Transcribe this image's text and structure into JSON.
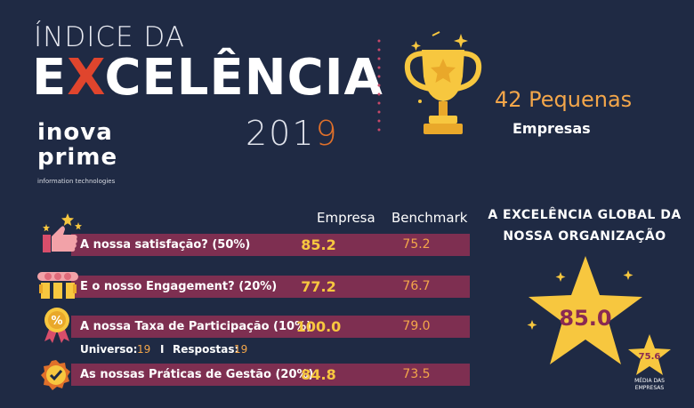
{
  "header": {
    "line1": "ÍNDICE DA",
    "excel_pre": "E",
    "excel_x": "X",
    "excel_post": "CELÊNCIA",
    "year_main": "201",
    "year_last": "9"
  },
  "logo": {
    "line1": "inova",
    "line2": "prime",
    "tagline": "information technologies"
  },
  "company_count": {
    "number_label": "42 Pequenas",
    "type_label": "Empresas"
  },
  "columns": {
    "empresa": "Empresa",
    "benchmark": "Benchmark"
  },
  "rows": [
    {
      "label": "A nossa satisfação? (50%)",
      "empresa": "85.2",
      "benchmark": "75.2",
      "icon": "thumbs-up-icon"
    },
    {
      "label": "E o nosso Engagement? (20%)",
      "empresa": "77.2",
      "benchmark": "76.7",
      "icon": "people-icon"
    },
    {
      "label": "A nossa Taxa de Participação (10%)",
      "empresa": "100.0",
      "benchmark": "79.0",
      "icon": "percent-medal-icon"
    },
    {
      "label": "As nossas Práticas de Gestão (20%)",
      "empresa": "84.8",
      "benchmark": "73.5",
      "icon": "check-badge-icon"
    }
  ],
  "universe": {
    "universo_label": "Universo:",
    "universo_value": "19",
    "separator": "I",
    "respostas_label": "Respostas:",
    "respostas_value": "19"
  },
  "global": {
    "line1": "A EXCELÊNCIA GLOBAL DA",
    "line2": "NOSSA ORGANIZAÇÃO",
    "score": "85.0",
    "avg": "75.6",
    "avg_label1": "MÉDIA DAS",
    "avg_label2": "EMPRESAS"
  },
  "colors": {
    "background": "#1f2a44",
    "row": "#7e2f51",
    "gold": "#f7c73f",
    "orange": "#f3a64a",
    "accent_red": "#e0452d"
  }
}
